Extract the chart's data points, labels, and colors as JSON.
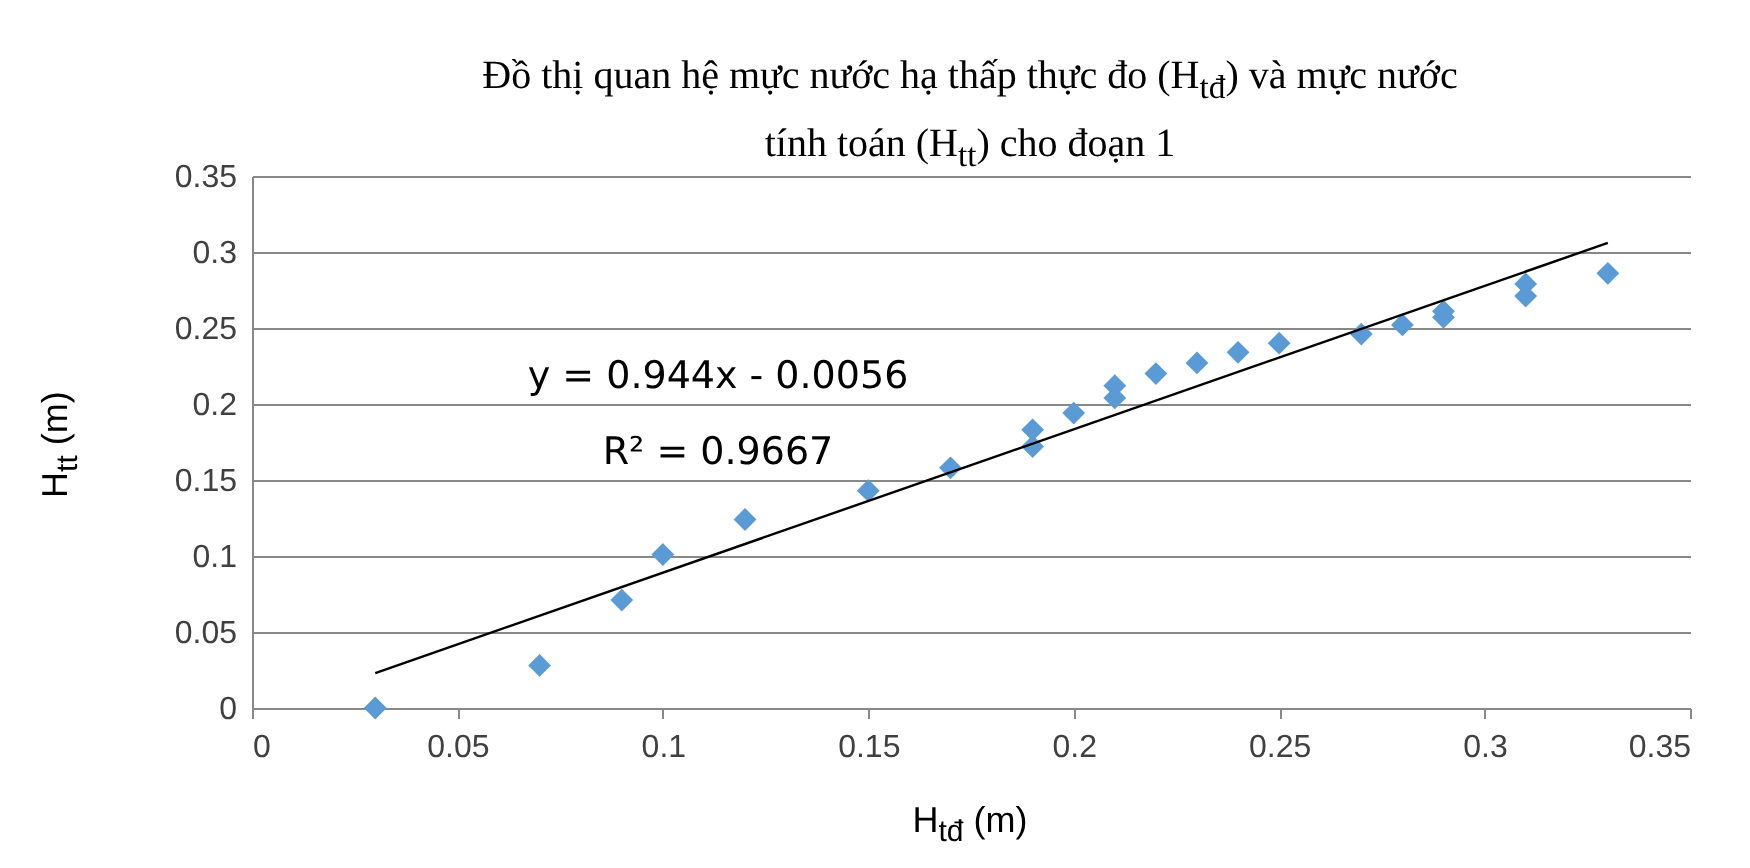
{
  "chart_data": {
    "type": "scatter",
    "title": "Đồ thị quan hệ mực nước hạ thấp thực đo (H$_{tđ}$) và mực nước tính toán (H$_{tt}$) cho đoạn 1",
    "xlabel": "H$_{tđ}$ (m)",
    "ylabel": "H$_{tt}$ (m)",
    "annotations": [
      "y = 0.944x - 0.0056",
      "R² = 0.9667"
    ],
    "xlim": [
      0,
      0.35
    ],
    "xticks": [
      0,
      0.05,
      0.1,
      0.15,
      0.2,
      0.25,
      0.3,
      0.35
    ],
    "ylim": [
      0,
      0.35
    ],
    "yticks": [
      0,
      0.05,
      0.1,
      0.15,
      0.2,
      0.25,
      0.3,
      0.35
    ],
    "grid": "y",
    "marker": "diamond",
    "series": [
      {
        "type": "scatter",
        "color": "#5b9bd5",
        "x": [
          0.03,
          0.07,
          0.09,
          0.1,
          0.12,
          0.15,
          0.17,
          0.19,
          0.19,
          0.2,
          0.21,
          0.21,
          0.22,
          0.23,
          0.24,
          0.25,
          0.27,
          0.28,
          0.29,
          0.29,
          0.31,
          0.31,
          0.33
        ],
        "values": [
          0,
          0.028,
          0.071,
          0.101,
          0.124,
          0.143,
          0.158,
          0.172,
          0.183,
          0.194,
          0.204,
          0.212,
          0.22,
          0.227,
          0.234,
          0.24,
          0.246,
          0.252,
          0.257,
          0.261,
          0.271,
          0.279,
          0.286
        ]
      },
      {
        "type": "line",
        "color": "#000000",
        "marker": "none",
        "line_style": "solid",
        "x": [
          0.03,
          0.33
        ],
        "values": [
          0.023,
          0.306
        ]
      }
    ]
  }
}
